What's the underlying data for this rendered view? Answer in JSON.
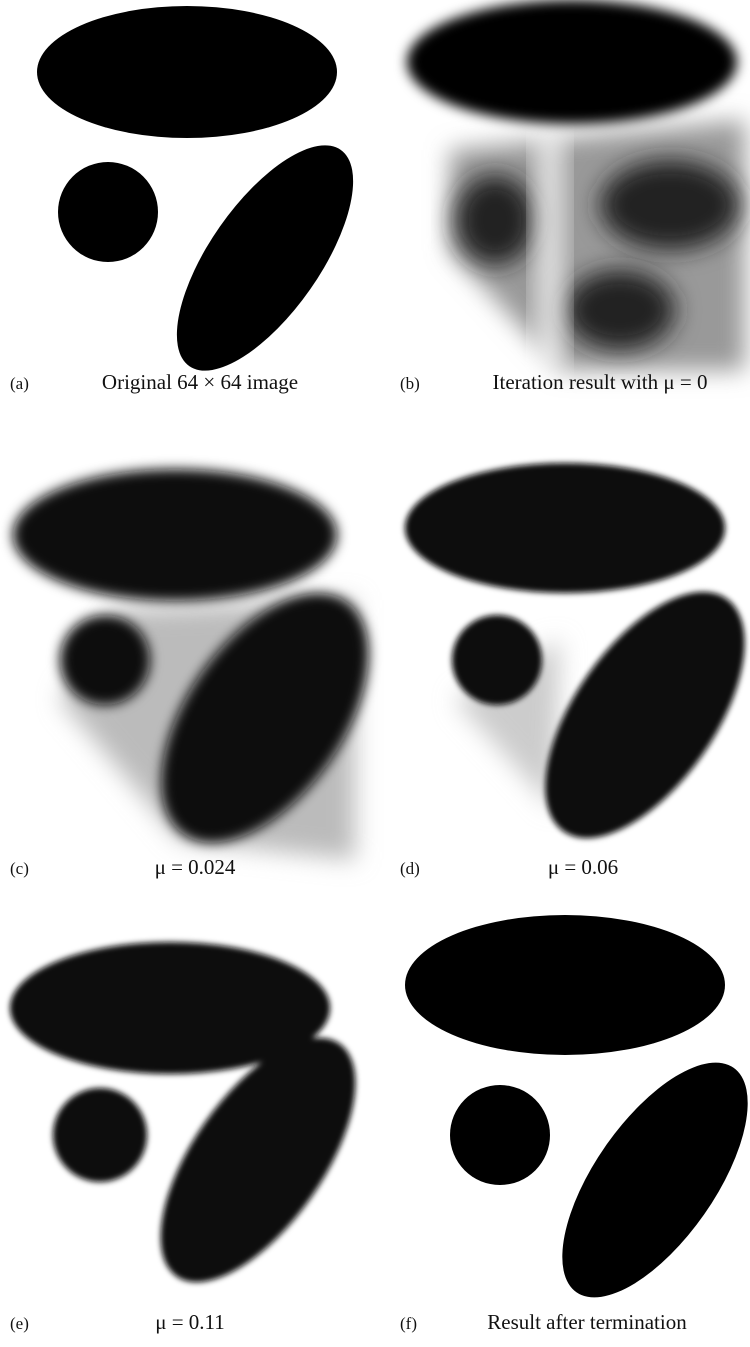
{
  "panels": [
    {
      "label": "(a)",
      "caption": "Original 64 × 64 image"
    },
    {
      "label": "(b)",
      "caption": "Iteration result with μ = 0"
    },
    {
      "label": "(c)",
      "caption": "μ = 0.024"
    },
    {
      "label": "(d)",
      "caption": "μ = 0.06"
    },
    {
      "label": "(e)",
      "caption": "μ = 0.11"
    },
    {
      "label": "(f)",
      "caption": "Result after termination"
    }
  ]
}
